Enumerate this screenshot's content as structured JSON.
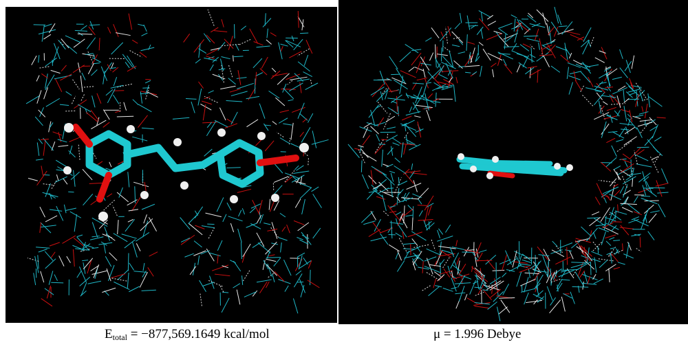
{
  "panels": [
    {
      "caption": {
        "symbol": "E",
        "subscript": "total",
        "text": "= −877,569.1649 kcal/mol"
      }
    },
    {
      "caption": {
        "text": "μ = 1.996 Debye"
      }
    }
  ]
}
